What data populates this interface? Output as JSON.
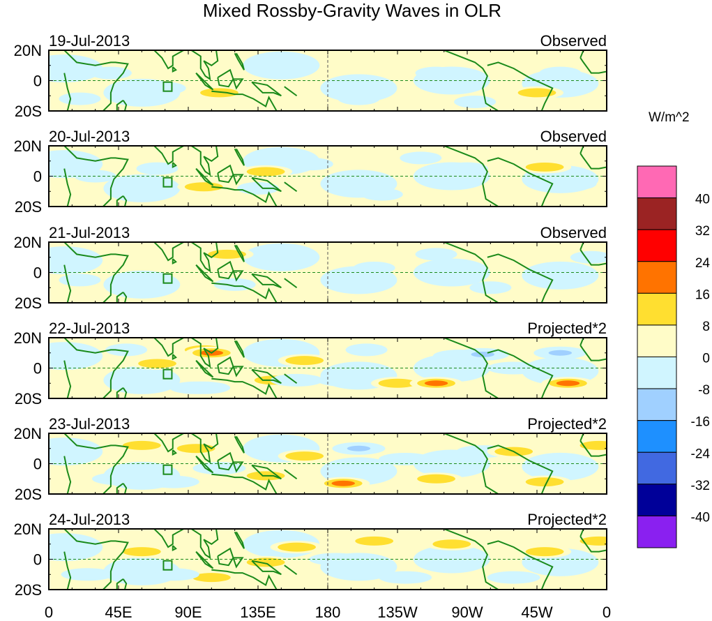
{
  "chart_data": {
    "type": "heatmap",
    "title": "Mixed Rossby-Gravity Waves in OLR",
    "units": "W/m^2",
    "x_ticks": [
      "0",
      "45E",
      "90E",
      "135E",
      "180",
      "135W",
      "90W",
      "45W",
      "0"
    ],
    "y_ticks": [
      "20N",
      "0",
      "20S"
    ],
    "lon_range": [
      0,
      360
    ],
    "lat_range": [
      -20,
      20
    ],
    "colorbar": {
      "levels": [
        "-40",
        "-32",
        "-24",
        "-16",
        "-8",
        "0",
        "8",
        "16",
        "24",
        "32",
        "40"
      ],
      "colors": [
        "#8A20F0",
        "#000099",
        "#4169E1",
        "#1E90FF",
        "#A0D0FF",
        "#D0F5FF",
        "#FFFCC8",
        "#FFDF30",
        "#FF7300",
        "#FF0000",
        "#9B2323",
        "#FF69B4"
      ]
    },
    "panels": [
      {
        "date": "19-Jul-2013",
        "label": "Observed",
        "anomalies": [
          [
            40,
            5,
            -4
          ],
          [
            75,
            -5,
            -5
          ],
          [
            110,
            -8,
            10
          ],
          [
            150,
            8,
            -4
          ],
          [
            200,
            -12,
            -4
          ],
          [
            250,
            5,
            -4
          ],
          [
            275,
            -14,
            -5
          ],
          [
            315,
            -8,
            10
          ],
          [
            330,
            5,
            -4
          ],
          [
            20,
            -12,
            -4
          ]
        ]
      },
      {
        "date": "20-Jul-2013",
        "label": "Observed",
        "anomalies": [
          [
            30,
            0,
            -5
          ],
          [
            70,
            5,
            -4
          ],
          [
            100,
            -7,
            10
          ],
          [
            135,
            -8,
            -5
          ],
          [
            140,
            3,
            9
          ],
          [
            170,
            8,
            -4
          ],
          [
            240,
            12,
            -4
          ],
          [
            270,
            5,
            -4
          ],
          [
            320,
            6,
            11
          ],
          [
            340,
            -5,
            -4
          ],
          [
            215,
            -12,
            -4
          ]
        ]
      },
      {
        "date": "21-Jul-2013",
        "label": "Observed",
        "anomalies": [
          [
            20,
            -5,
            -4
          ],
          [
            60,
            -5,
            -5
          ],
          [
            120,
            -8,
            -4
          ],
          [
            160,
            12,
            -4
          ],
          [
            210,
            3,
            -4
          ],
          [
            250,
            12,
            -4
          ],
          [
            285,
            -10,
            -5
          ],
          [
            320,
            -2,
            -5
          ],
          [
            350,
            10,
            -4
          ],
          [
            115,
            12,
            9
          ]
        ]
      },
      {
        "date": "22-Jul-2013",
        "label": "Projected*2",
        "anomalies": [
          [
            50,
            12,
            -4
          ],
          [
            100,
            12,
            12
          ],
          [
            105,
            10,
            22
          ],
          [
            95,
            -13,
            -20
          ],
          [
            100,
            -13,
            -10
          ],
          [
            145,
            -8,
            12
          ],
          [
            165,
            5,
            12
          ],
          [
            190,
            -8,
            -10
          ],
          [
            160,
            -8,
            -10
          ],
          [
            225,
            -10,
            12
          ],
          [
            250,
            -10,
            16
          ],
          [
            265,
            8,
            -10
          ],
          [
            280,
            9,
            -20
          ],
          [
            335,
            -10,
            20
          ],
          [
            330,
            10,
            -16
          ],
          [
            205,
            12,
            -5
          ],
          [
            70,
            3,
            10
          ],
          [
            300,
            0,
            -8
          ]
        ]
      },
      {
        "date": "23-Jul-2013",
        "label": "Projected*2",
        "anomalies": [
          [
            60,
            12,
            9
          ],
          [
            95,
            10,
            9
          ],
          [
            110,
            -3,
            -10
          ],
          [
            140,
            -8,
            12
          ],
          [
            165,
            5,
            12
          ],
          [
            190,
            -13,
            20
          ],
          [
            200,
            10,
            -20
          ],
          [
            230,
            3,
            -10
          ],
          [
            250,
            -10,
            10
          ],
          [
            280,
            8,
            -8
          ],
          [
            300,
            8,
            9
          ],
          [
            320,
            -12,
            9
          ],
          [
            355,
            12,
            12
          ],
          [
            80,
            -12,
            -10
          ],
          [
            45,
            -10,
            -10
          ]
        ]
      },
      {
        "date": "24-Jul-2013",
        "label": "Projected*2",
        "anomalies": [
          [
            60,
            5,
            9
          ],
          [
            105,
            -12,
            10
          ],
          [
            140,
            -2,
            9
          ],
          [
            160,
            8,
            10
          ],
          [
            185,
            0,
            -9
          ],
          [
            210,
            12,
            12
          ],
          [
            230,
            -12,
            -10
          ],
          [
            260,
            10,
            9
          ],
          [
            300,
            -12,
            -10
          ],
          [
            320,
            5,
            9
          ],
          [
            355,
            12,
            12
          ],
          [
            80,
            -10,
            -10
          ],
          [
            25,
            -10,
            -9
          ]
        ]
      }
    ]
  }
}
